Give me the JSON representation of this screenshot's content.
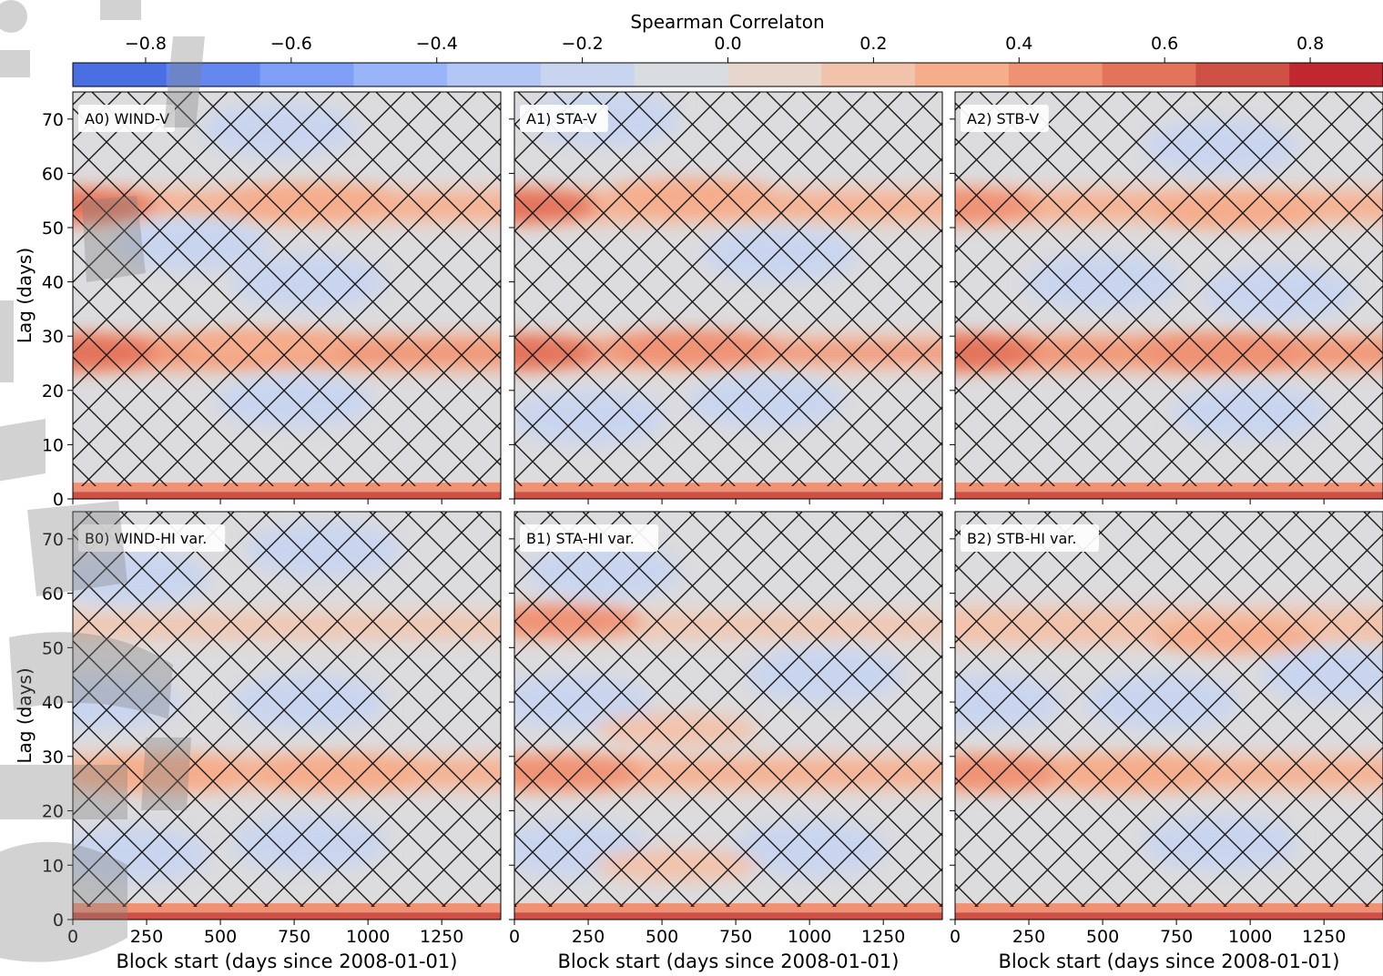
{
  "colorbar": {
    "title": "Spearman Correlaton",
    "ticks": [
      -0.8,
      -0.6,
      -0.4,
      -0.2,
      0.0,
      0.2,
      0.4,
      0.6,
      0.8
    ],
    "tick_labels": [
      "−0.8",
      "−0.6",
      "−0.4",
      "−0.2",
      "0.0",
      "0.2",
      "0.4",
      "0.6",
      "0.8"
    ],
    "range": [
      -0.9,
      0.9
    ],
    "colors": [
      "#4a6fe3",
      "#6488f0",
      "#7f9ff6",
      "#9ab4f9",
      "#b3c7f7",
      "#c9d5ef",
      "#d9dce1",
      "#e6d6cc",
      "#f2c3ab",
      "#f5ad8c",
      "#ef9274",
      "#e3735b",
      "#cf5044",
      "#c0282f"
    ]
  },
  "chart_data": {
    "type": "heatmap",
    "x_range": [
      0,
      1450
    ],
    "y_range": [
      0,
      75
    ],
    "x_ticks": [
      0,
      250,
      500,
      750,
      1000,
      1250
    ],
    "y_ticks": [
      0,
      10,
      20,
      30,
      40,
      50,
      60,
      70
    ],
    "xlabel": "Block start (days since 2008-01-01)",
    "ylabel": "Lag (days)",
    "hatch": "xx",
    "panels": [
      {
        "label": "A0) WIND-V",
        "row": 0,
        "col": 0,
        "bands": [
          {
            "lag": 27,
            "strength": 0.45
          },
          {
            "lag": 54,
            "strength": 0.35
          }
        ],
        "hot": [
          {
            "x": 0,
            "y": 27,
            "v": 0.55
          },
          {
            "x": 0,
            "y": 54,
            "v": 0.55
          },
          {
            "x": 800,
            "y": 55,
            "v": 0.3
          },
          {
            "x": 650,
            "y": 28,
            "v": 0.3
          }
        ],
        "cool": [
          {
            "x": 800,
            "y": 40,
            "v": -0.2
          },
          {
            "x": 750,
            "y": 18,
            "v": -0.2
          },
          {
            "x": 700,
            "y": 68,
            "v": -0.15
          },
          {
            "x": 400,
            "y": 47,
            "v": -0.15
          }
        ]
      },
      {
        "label": "A1) STA-V",
        "row": 0,
        "col": 1,
        "bands": [
          {
            "lag": 27,
            "strength": 0.4
          },
          {
            "lag": 54,
            "strength": 0.3
          }
        ],
        "hot": [
          {
            "x": 0,
            "y": 27,
            "v": 0.55
          },
          {
            "x": 0,
            "y": 54,
            "v": 0.55
          },
          {
            "x": 600,
            "y": 28,
            "v": 0.45
          },
          {
            "x": 600,
            "y": 56,
            "v": 0.3
          }
        ],
        "cool": [
          {
            "x": 900,
            "y": 45,
            "v": -0.2
          },
          {
            "x": 850,
            "y": 18,
            "v": -0.2
          },
          {
            "x": 250,
            "y": 15,
            "v": -0.15
          },
          {
            "x": 300,
            "y": 70,
            "v": -0.15
          }
        ]
      },
      {
        "label": "A2) STB-V",
        "row": 0,
        "col": 2,
        "bands": [
          {
            "lag": 27,
            "strength": 0.45
          },
          {
            "lag": 54,
            "strength": 0.35
          }
        ],
        "hot": [
          {
            "x": 0,
            "y": 27,
            "v": 0.55
          },
          {
            "x": 0,
            "y": 54,
            "v": 0.5
          },
          {
            "x": 900,
            "y": 27,
            "v": 0.4
          },
          {
            "x": 950,
            "y": 53,
            "v": 0.35
          }
        ],
        "cool": [
          {
            "x": 900,
            "y": 65,
            "v": -0.2
          },
          {
            "x": 1000,
            "y": 16,
            "v": -0.2
          },
          {
            "x": 500,
            "y": 40,
            "v": -0.15
          },
          {
            "x": 1100,
            "y": 38,
            "v": -0.15
          }
        ]
      },
      {
        "label": "B0) WIND-HI var.",
        "row": 1,
        "col": 0,
        "bands": [
          {
            "lag": 27,
            "strength": 0.3
          },
          {
            "lag": 54,
            "strength": 0.2
          }
        ],
        "hot": [
          {
            "x": 300,
            "y": 27,
            "v": 0.3
          },
          {
            "x": 900,
            "y": 27,
            "v": 0.3
          }
        ],
        "cool": [
          {
            "x": 100,
            "y": 40,
            "v": -0.2
          },
          {
            "x": 800,
            "y": 40,
            "v": -0.2
          },
          {
            "x": 800,
            "y": 14,
            "v": -0.2
          },
          {
            "x": 200,
            "y": 12,
            "v": -0.15
          },
          {
            "x": 200,
            "y": 63,
            "v": -0.15
          },
          {
            "x": 850,
            "y": 68,
            "v": -0.15
          }
        ]
      },
      {
        "label": "B1) STA-HI var.",
        "row": 1,
        "col": 1,
        "bands": [
          {
            "lag": 27,
            "strength": 0.3
          },
          {
            "lag": 54,
            "strength": 0.15
          }
        ],
        "hot": [
          {
            "x": 150,
            "y": 27,
            "v": 0.5
          },
          {
            "x": 150,
            "y": 55,
            "v": 0.4
          },
          {
            "x": 550,
            "y": 35,
            "v": 0.25
          },
          {
            "x": 550,
            "y": 10,
            "v": 0.25
          }
        ],
        "cool": [
          {
            "x": 200,
            "y": 40,
            "v": -0.25
          },
          {
            "x": 200,
            "y": 13,
            "v": -0.25
          },
          {
            "x": 1000,
            "y": 13,
            "v": -0.2
          },
          {
            "x": 1050,
            "y": 45,
            "v": -0.15
          },
          {
            "x": 300,
            "y": 64,
            "v": -0.15
          }
        ]
      },
      {
        "label": "B2) STB-HI var.",
        "row": 1,
        "col": 2,
        "bands": [
          {
            "lag": 27,
            "strength": 0.35
          },
          {
            "lag": 54,
            "strength": 0.25
          }
        ],
        "hot": [
          {
            "x": 100,
            "y": 27,
            "v": 0.45
          },
          {
            "x": 600,
            "y": 27,
            "v": 0.35
          },
          {
            "x": 950,
            "y": 52,
            "v": 0.3
          }
        ],
        "cool": [
          {
            "x": 900,
            "y": 14,
            "v": -0.2
          },
          {
            "x": 100,
            "y": 40,
            "v": -0.2
          },
          {
            "x": 700,
            "y": 40,
            "v": -0.15
          },
          {
            "x": 1300,
            "y": 45,
            "v": -0.15
          }
        ]
      }
    ]
  }
}
